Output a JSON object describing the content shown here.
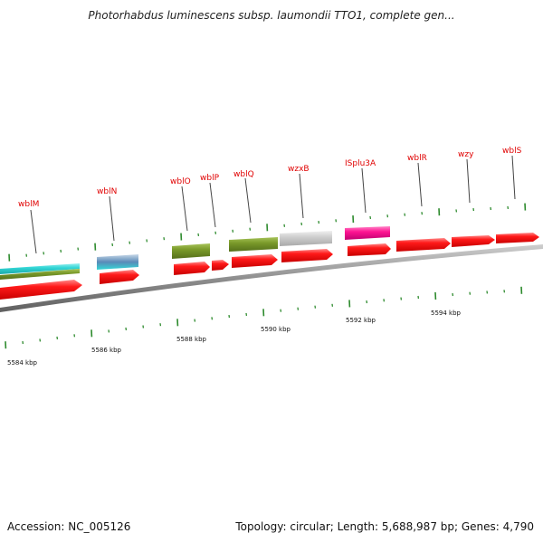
{
  "title": "Photorhabdus luminescens subsp. laumondii TTO1, complete gen...",
  "footer": {
    "accession": "Accession: NC_005126",
    "summary": "Topology: circular; Length: 5,688,987 bp; Genes: 4,790"
  },
  "colors": {
    "forward_cds": "#ff1a1a",
    "backbone": "#8f8f8f",
    "ticks": "#2e8b2e",
    "labels": "#e00000",
    "cyan": "#33d6d6",
    "olive": "#7a9a2a",
    "steel_blue": "#5a8ab8",
    "gray": "#c8c8c8",
    "pink": "#ff1493"
  },
  "chart_data": {
    "type": "genome_map",
    "kbp_labels": [
      "5584 kbp",
      "5586 kbp",
      "5588 kbp",
      "5590 kbp",
      "5592 kbp",
      "5594 kbp"
    ],
    "gene_labels": [
      "wblM",
      "wblN",
      "wblO",
      "wblP",
      "wblQ",
      "wzxB",
      "ISplu3A",
      "wblR",
      "wzy",
      "wblS"
    ]
  }
}
